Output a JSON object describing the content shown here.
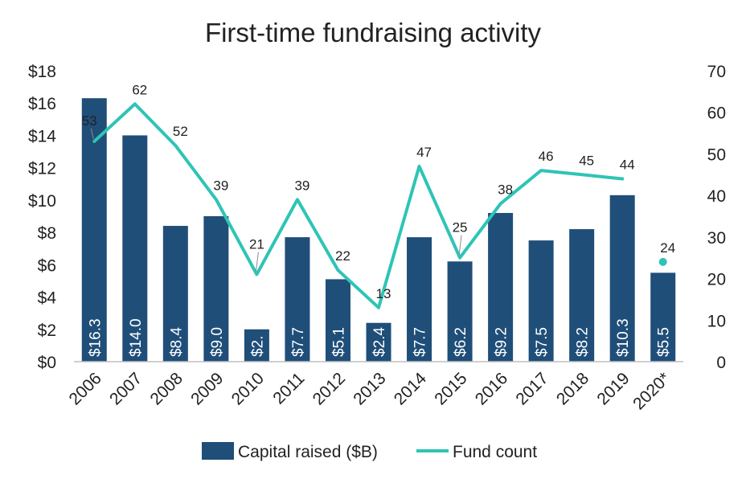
{
  "chart_data": {
    "type": "bar",
    "title": "First-time fundraising activity",
    "categories": [
      "2006",
      "2007",
      "2008",
      "2009",
      "2010",
      "2011",
      "2012",
      "2013",
      "2014",
      "2015",
      "2016",
      "2017",
      "2018",
      "2019",
      "2020*"
    ],
    "series": [
      {
        "name": "Capital raised ($B)",
        "type": "bar",
        "axis": "left",
        "color": "#1f4e79",
        "values": [
          16.3,
          14.0,
          8.4,
          9.0,
          2.0,
          7.7,
          5.1,
          2.4,
          7.7,
          6.2,
          9.2,
          7.5,
          8.2,
          10.3,
          5.5
        ],
        "labels": [
          "$16.3",
          "$14.0",
          "$8.4",
          "$9.0",
          "$2.",
          "$7.7",
          "$5.1",
          "$2.4",
          "$7.7",
          "$6.2",
          "$9.2",
          "$7.5",
          "$8.2",
          "$10.3",
          "$5.5"
        ]
      },
      {
        "name": "Fund count",
        "type": "line",
        "axis": "right",
        "color": "#2ec4b6",
        "values": [
          53,
          62,
          52,
          39,
          21,
          39,
          22,
          13,
          47,
          25,
          38,
          46,
          45,
          44,
          24
        ],
        "labels": [
          "53",
          "62",
          "52",
          "39",
          "21",
          "39",
          "22",
          "13",
          "47",
          "25",
          "38",
          "46",
          "45",
          "44",
          "24"
        ],
        "line_break_before_last": true
      }
    ],
    "y_left": {
      "min": 0,
      "max": 18,
      "ticks": [
        0,
        2,
        4,
        6,
        8,
        10,
        12,
        14,
        16,
        18
      ],
      "tick_labels": [
        "$0",
        "$2",
        "$4",
        "$6",
        "$8",
        "$10",
        "$12",
        "$14",
        "$16",
        "$18"
      ]
    },
    "y_right": {
      "min": 0,
      "max": 70,
      "ticks": [
        0,
        10,
        20,
        30,
        40,
        50,
        60,
        70
      ],
      "tick_labels": [
        "0",
        "10",
        "20",
        "30",
        "40",
        "50",
        "60",
        "70"
      ]
    },
    "grid": false,
    "legend": "bottom"
  }
}
